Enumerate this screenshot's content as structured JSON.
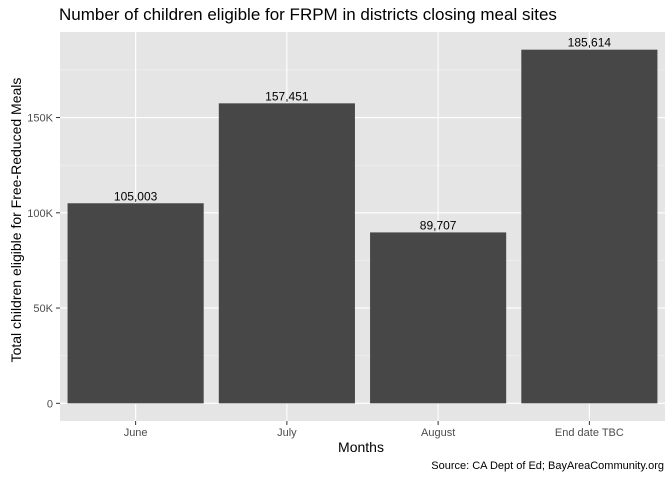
{
  "chart_data": {
    "type": "bar",
    "title": "Number of children eligible for FRPM in districts closing meal sites",
    "xlabel": "Months",
    "ylabel": "Total children eligible for Free-Reduced Meals",
    "caption": "Source: CA Dept of Ed; BayAreaCommunity.org",
    "categories": [
      "June",
      "July",
      "August",
      "End date TBC"
    ],
    "values": [
      105003,
      157451,
      89707,
      185614
    ],
    "data_labels": [
      "105,003",
      "157,451",
      "89,707",
      "185,614"
    ],
    "ylim": [
      -9281,
      194895
    ],
    "yticks": [
      0,
      50000,
      100000,
      150000
    ],
    "ytick_labels": [
      "0",
      "50K",
      "100K",
      "150K"
    ],
    "grid": true,
    "colors": {
      "bar": "#474747",
      "panel": "#e5e5e5",
      "grid_major": "#ffffff",
      "grid_minor": "#f2f2f2"
    }
  }
}
